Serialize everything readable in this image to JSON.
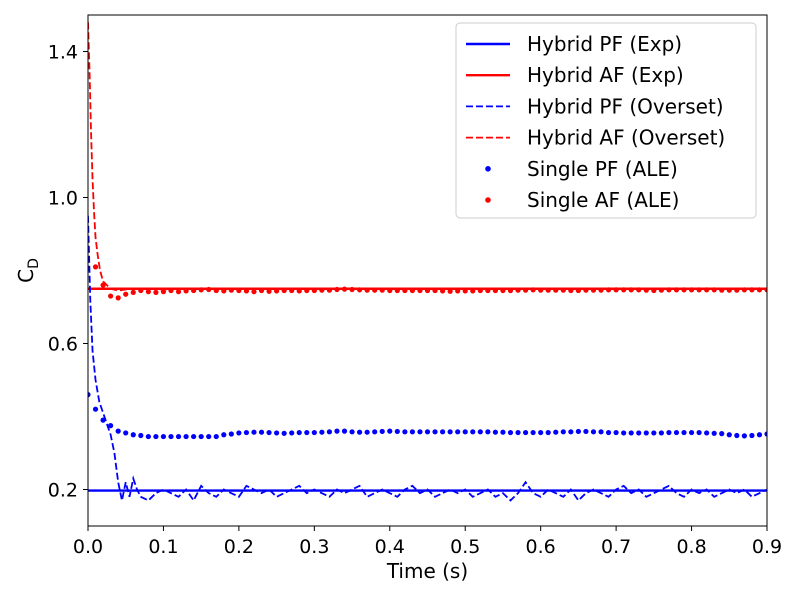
{
  "chart_data": {
    "type": "line",
    "title": "",
    "xlabel": "Time (s)",
    "ylabel_main": "C",
    "ylabel_sub": "D",
    "xlim": [
      0.0,
      0.9
    ],
    "ylim": [
      0.1,
      1.5
    ],
    "xticks": [
      0.0,
      0.1,
      0.2,
      0.3,
      0.4,
      0.5,
      0.6,
      0.7,
      0.8,
      0.9
    ],
    "xtick_labels": [
      "0.0",
      "0.1",
      "0.2",
      "0.3",
      "0.4",
      "0.5",
      "0.6",
      "0.7",
      "0.8",
      "0.9"
    ],
    "yticks": [
      0.2,
      0.6,
      1.0,
      1.4
    ],
    "ytick_labels": [
      "0.2",
      "0.6",
      "1.0",
      "1.4"
    ],
    "grid": false,
    "legend_position": "top-right",
    "series": [
      {
        "name": "Hybrid PF (Exp)",
        "style": "solid",
        "color": "#0000ff",
        "x": [
          0.0,
          0.9
        ],
        "y": [
          0.197,
          0.197
        ]
      },
      {
        "name": "Hybrid AF (Exp)",
        "style": "solid",
        "color": "#ff0000",
        "x": [
          0.0,
          0.9
        ],
        "y": [
          0.75,
          0.75
        ]
      },
      {
        "name": "Hybrid PF (Overset)",
        "style": "dashed",
        "color": "#0000ff",
        "x": [
          0.0,
          0.003,
          0.006,
          0.01,
          0.015,
          0.02,
          0.025,
          0.03,
          0.035,
          0.04,
          0.045,
          0.05,
          0.055,
          0.06,
          0.065,
          0.07,
          0.08,
          0.09,
          0.1,
          0.11,
          0.12,
          0.13,
          0.14,
          0.15,
          0.16,
          0.17,
          0.18,
          0.19,
          0.2,
          0.21,
          0.22,
          0.23,
          0.24,
          0.25,
          0.26,
          0.27,
          0.28,
          0.29,
          0.3,
          0.31,
          0.32,
          0.33,
          0.34,
          0.35,
          0.36,
          0.37,
          0.38,
          0.39,
          0.4,
          0.41,
          0.42,
          0.43,
          0.44,
          0.45,
          0.46,
          0.47,
          0.48,
          0.49,
          0.5,
          0.51,
          0.52,
          0.53,
          0.54,
          0.55,
          0.56,
          0.57,
          0.58,
          0.59,
          0.6,
          0.61,
          0.62,
          0.63,
          0.64,
          0.65,
          0.66,
          0.67,
          0.68,
          0.69,
          0.7,
          0.71,
          0.72,
          0.73,
          0.74,
          0.75,
          0.76,
          0.77,
          0.78,
          0.79,
          0.8,
          0.81,
          0.82,
          0.83,
          0.84,
          0.85,
          0.86,
          0.87,
          0.88,
          0.89,
          0.9
        ],
        "y": [
          0.95,
          0.72,
          0.58,
          0.5,
          0.44,
          0.41,
          0.38,
          0.35,
          0.3,
          0.22,
          0.17,
          0.22,
          0.18,
          0.23,
          0.2,
          0.18,
          0.17,
          0.19,
          0.2,
          0.19,
          0.18,
          0.2,
          0.17,
          0.21,
          0.19,
          0.18,
          0.2,
          0.19,
          0.18,
          0.21,
          0.2,
          0.19,
          0.2,
          0.18,
          0.19,
          0.2,
          0.21,
          0.19,
          0.2,
          0.19,
          0.18,
          0.2,
          0.19,
          0.2,
          0.21,
          0.18,
          0.19,
          0.2,
          0.19,
          0.18,
          0.2,
          0.21,
          0.19,
          0.2,
          0.18,
          0.19,
          0.2,
          0.19,
          0.2,
          0.18,
          0.19,
          0.2,
          0.18,
          0.19,
          0.17,
          0.19,
          0.22,
          0.19,
          0.18,
          0.2,
          0.19,
          0.18,
          0.2,
          0.17,
          0.19,
          0.2,
          0.19,
          0.18,
          0.2,
          0.21,
          0.19,
          0.2,
          0.18,
          0.19,
          0.2,
          0.21,
          0.19,
          0.18,
          0.2,
          0.19,
          0.2,
          0.18,
          0.19,
          0.2,
          0.19,
          0.2,
          0.18,
          0.19,
          0.2
        ]
      },
      {
        "name": "Hybrid AF (Overset)",
        "style": "dashed",
        "color": "#ff0000",
        "x": [
          0.0,
          0.002,
          0.004,
          0.006,
          0.008,
          0.01,
          0.013,
          0.016,
          0.02,
          0.025,
          0.03,
          0.04,
          0.05,
          0.06,
          0.07,
          0.08,
          0.1,
          0.12,
          0.14,
          0.16,
          0.18,
          0.2,
          0.25,
          0.3,
          0.35,
          0.4,
          0.45,
          0.5,
          0.55,
          0.6,
          0.65,
          0.7,
          0.75,
          0.8,
          0.85,
          0.9
        ],
        "y": [
          1.48,
          1.35,
          1.18,
          1.05,
          0.96,
          0.89,
          0.84,
          0.8,
          0.77,
          0.76,
          0.75,
          0.745,
          0.748,
          0.75,
          0.749,
          0.75,
          0.748,
          0.75,
          0.749,
          0.751,
          0.75,
          0.749,
          0.75,
          0.751,
          0.749,
          0.75,
          0.75,
          0.749,
          0.75,
          0.751,
          0.749,
          0.75,
          0.75,
          0.749,
          0.75,
          0.75
        ]
      },
      {
        "name": "Single PF (ALE)",
        "style": "dots",
        "color": "#0000ff",
        "x": [
          0.0,
          0.01,
          0.02,
          0.03,
          0.04,
          0.05,
          0.06,
          0.07,
          0.08,
          0.09,
          0.1,
          0.11,
          0.12,
          0.13,
          0.14,
          0.15,
          0.16,
          0.17,
          0.18,
          0.19,
          0.2,
          0.21,
          0.22,
          0.23,
          0.24,
          0.25,
          0.26,
          0.27,
          0.28,
          0.29,
          0.3,
          0.31,
          0.32,
          0.33,
          0.34,
          0.35,
          0.36,
          0.37,
          0.38,
          0.39,
          0.4,
          0.41,
          0.42,
          0.43,
          0.44,
          0.45,
          0.46,
          0.47,
          0.48,
          0.49,
          0.5,
          0.51,
          0.52,
          0.53,
          0.54,
          0.55,
          0.56,
          0.57,
          0.58,
          0.59,
          0.6,
          0.61,
          0.62,
          0.63,
          0.64,
          0.65,
          0.66,
          0.67,
          0.68,
          0.69,
          0.7,
          0.71,
          0.72,
          0.73,
          0.74,
          0.75,
          0.76,
          0.77,
          0.78,
          0.79,
          0.8,
          0.81,
          0.82,
          0.83,
          0.84,
          0.85,
          0.86,
          0.87,
          0.88,
          0.89,
          0.9
        ],
        "y": [
          0.46,
          0.42,
          0.39,
          0.375,
          0.36,
          0.355,
          0.35,
          0.348,
          0.345,
          0.345,
          0.345,
          0.345,
          0.345,
          0.345,
          0.345,
          0.345,
          0.345,
          0.345,
          0.35,
          0.352,
          0.355,
          0.356,
          0.357,
          0.357,
          0.356,
          0.355,
          0.354,
          0.355,
          0.356,
          0.356,
          0.356,
          0.357,
          0.358,
          0.36,
          0.36,
          0.358,
          0.357,
          0.357,
          0.358,
          0.359,
          0.36,
          0.359,
          0.358,
          0.358,
          0.358,
          0.358,
          0.358,
          0.358,
          0.358,
          0.358,
          0.358,
          0.358,
          0.358,
          0.358,
          0.357,
          0.357,
          0.356,
          0.356,
          0.356,
          0.356,
          0.356,
          0.356,
          0.357,
          0.358,
          0.358,
          0.359,
          0.359,
          0.358,
          0.358,
          0.356,
          0.356,
          0.355,
          0.355,
          0.355,
          0.355,
          0.355,
          0.355,
          0.356,
          0.356,
          0.356,
          0.356,
          0.356,
          0.355,
          0.354,
          0.353,
          0.35,
          0.348,
          0.347,
          0.348,
          0.35,
          0.352
        ]
      },
      {
        "name": "Single AF (ALE)",
        "style": "dots",
        "color": "#ff0000",
        "x": [
          0.01,
          0.02,
          0.03,
          0.04,
          0.05,
          0.06,
          0.07,
          0.08,
          0.09,
          0.1,
          0.11,
          0.12,
          0.13,
          0.14,
          0.15,
          0.16,
          0.17,
          0.18,
          0.19,
          0.2,
          0.21,
          0.22,
          0.23,
          0.24,
          0.25,
          0.26,
          0.27,
          0.28,
          0.29,
          0.3,
          0.31,
          0.32,
          0.33,
          0.34,
          0.35,
          0.36,
          0.37,
          0.38,
          0.39,
          0.4,
          0.41,
          0.42,
          0.43,
          0.44,
          0.45,
          0.46,
          0.47,
          0.48,
          0.49,
          0.5,
          0.51,
          0.52,
          0.53,
          0.54,
          0.55,
          0.56,
          0.57,
          0.58,
          0.59,
          0.6,
          0.61,
          0.62,
          0.63,
          0.64,
          0.65,
          0.66,
          0.67,
          0.68,
          0.69,
          0.7,
          0.71,
          0.72,
          0.73,
          0.74,
          0.75,
          0.76,
          0.77,
          0.78,
          0.79,
          0.8,
          0.81,
          0.82,
          0.83,
          0.84,
          0.85,
          0.86,
          0.87,
          0.88,
          0.89,
          0.9
        ],
        "y": [
          0.81,
          0.76,
          0.73,
          0.725,
          0.735,
          0.74,
          0.745,
          0.742,
          0.74,
          0.742,
          0.745,
          0.742,
          0.744,
          0.745,
          0.747,
          0.748,
          0.745,
          0.744,
          0.746,
          0.745,
          0.744,
          0.742,
          0.745,
          0.743,
          0.744,
          0.745,
          0.745,
          0.744,
          0.745,
          0.745,
          0.746,
          0.746,
          0.748,
          0.749,
          0.748,
          0.747,
          0.746,
          0.746,
          0.746,
          0.745,
          0.745,
          0.745,
          0.745,
          0.745,
          0.745,
          0.745,
          0.744,
          0.743,
          0.744,
          0.744,
          0.744,
          0.745,
          0.745,
          0.745,
          0.745,
          0.745,
          0.746,
          0.746,
          0.747,
          0.746,
          0.746,
          0.746,
          0.746,
          0.745,
          0.745,
          0.746,
          0.746,
          0.746,
          0.747,
          0.747,
          0.747,
          0.747,
          0.747,
          0.746,
          0.745,
          0.746,
          0.747,
          0.747,
          0.747,
          0.747,
          0.747,
          0.747,
          0.747,
          0.746,
          0.746,
          0.746,
          0.747,
          0.747,
          0.747,
          0.747
        ]
      }
    ]
  }
}
